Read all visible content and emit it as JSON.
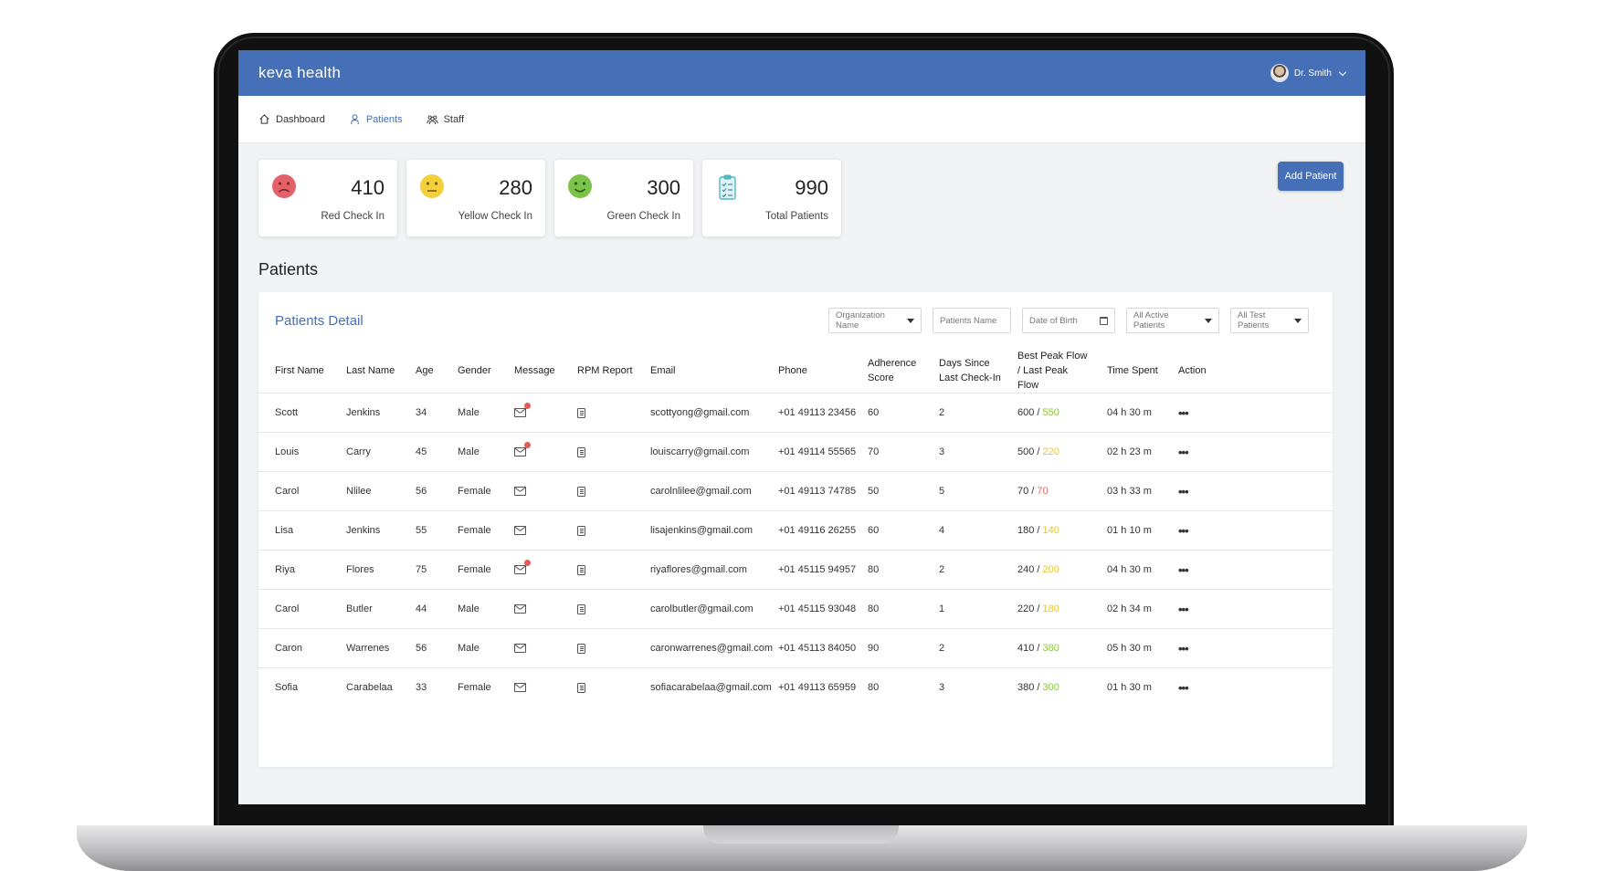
{
  "app": {
    "logo": "keva health",
    "user_name": "Dr. Smith"
  },
  "nav": [
    {
      "label": "Dashboard",
      "icon": "home-icon",
      "active": false
    },
    {
      "label": "Patients",
      "icon": "user-icon",
      "active": true
    },
    {
      "label": "Staff",
      "icon": "staff-icon",
      "active": false
    }
  ],
  "stats": [
    {
      "value": "410",
      "label": "Red Check In",
      "icon": "sad-face-icon",
      "color": "#e5616a"
    },
    {
      "value": "280",
      "label": "Yellow Check In",
      "icon": "neutral-face-icon",
      "color": "#f3cf3b"
    },
    {
      "value": "300",
      "label": "Green Check In",
      "icon": "happy-face-icon",
      "color": "#7cc349"
    },
    {
      "value": "990",
      "label": "Total Patients",
      "icon": "clipboard-icon",
      "color": "#4fb8c7"
    }
  ],
  "add_patient_label": "Add Patient",
  "section_title": "Patients",
  "panel_title": "Patients Detail",
  "filters": {
    "organization": "Organization Name",
    "patients_name": "Patients Name",
    "dob": "Date of Birth",
    "active": "All Active Patients",
    "test": "All Test Patients"
  },
  "columns": [
    "First Name",
    "Last Name",
    "Age",
    "Gender",
    "Message",
    "RPM Report",
    "Email",
    "Phone",
    "Adherence Score",
    "Days Since Last Check-In",
    "Best Peak Flow / Last Peak Flow",
    "Time Spent",
    "Action"
  ],
  "colors": {
    "peak_green": "#8cc63f",
    "peak_yellow": "#e8c531",
    "peak_red": "#e36a6a",
    "brand": "#4570b8"
  },
  "rows": [
    {
      "first": "Scott",
      "last": "Jenkins",
      "age": "34",
      "gender": "Male",
      "unread": true,
      "email": "scottyong@gmail.com",
      "phone": "+01 49113 23456",
      "adherence": "60",
      "days": "2",
      "best_peak": "600",
      "last_peak": "550",
      "peak_status": "green",
      "time": "04 h 30 m"
    },
    {
      "first": "Louis",
      "last": "Carry",
      "age": "45",
      "gender": "Male",
      "unread": true,
      "email": "louiscarry@gmail.com",
      "phone": "+01 49114 55565",
      "adherence": "70",
      "days": "3",
      "best_peak": "500",
      "last_peak": "220",
      "peak_status": "yellow",
      "time": "02 h 23 m"
    },
    {
      "first": "Carol",
      "last": "Nlilee",
      "age": "56",
      "gender": "Female",
      "unread": false,
      "email": "carolnlilee@gmail.com",
      "phone": "+01 49113 74785",
      "adherence": "50",
      "days": "5",
      "best_peak": "70",
      "last_peak": "70",
      "peak_status": "red",
      "time": "03 h 33 m"
    },
    {
      "first": "Lisa",
      "last": "Jenkins",
      "age": "55",
      "gender": "Female",
      "unread": false,
      "email": "lisajenkins@gmail.com",
      "phone": "+01 49116 26255",
      "adherence": "60",
      "days": "4",
      "best_peak": "180",
      "last_peak": "140",
      "peak_status": "yellow",
      "time": "01 h 10 m"
    },
    {
      "first": "Riya",
      "last": "Flores",
      "age": "75",
      "gender": "Female",
      "unread": true,
      "email": "riyaflores@gmail.com",
      "phone": "+01 45115 94957",
      "adherence": "80",
      "days": "2",
      "best_peak": "240",
      "last_peak": "200",
      "peak_status": "yellow",
      "time": "04 h 30 m"
    },
    {
      "first": "Carol",
      "last": "Butler",
      "age": "44",
      "gender": "Male",
      "unread": false,
      "email": "carolbutler@gmail.com",
      "phone": "+01 45115 93048",
      "adherence": "80",
      "days": "1",
      "best_peak": "220",
      "last_peak": "180",
      "peak_status": "yellow",
      "time": "02 h 34 m"
    },
    {
      "first": "Caron",
      "last": "Warrenes",
      "age": "56",
      "gender": "Male",
      "unread": false,
      "email": "caronwarrenes@gmail.com",
      "phone": "+01 45113 84050",
      "adherence": "90",
      "days": "2",
      "best_peak": "410",
      "last_peak": "380",
      "peak_status": "green",
      "time": "05 h 30 m"
    },
    {
      "first": "Sofia",
      "last": "Carabelaa",
      "age": "33",
      "gender": "Female",
      "unread": false,
      "email": "sofiacarabelaa@gmail.com",
      "phone": "+01 49113 65959",
      "adherence": "80",
      "days": "3",
      "best_peak": "380",
      "last_peak": "300",
      "peak_status": "green",
      "time": "01 h 30 m"
    }
  ],
  "action_glyph": "•••"
}
